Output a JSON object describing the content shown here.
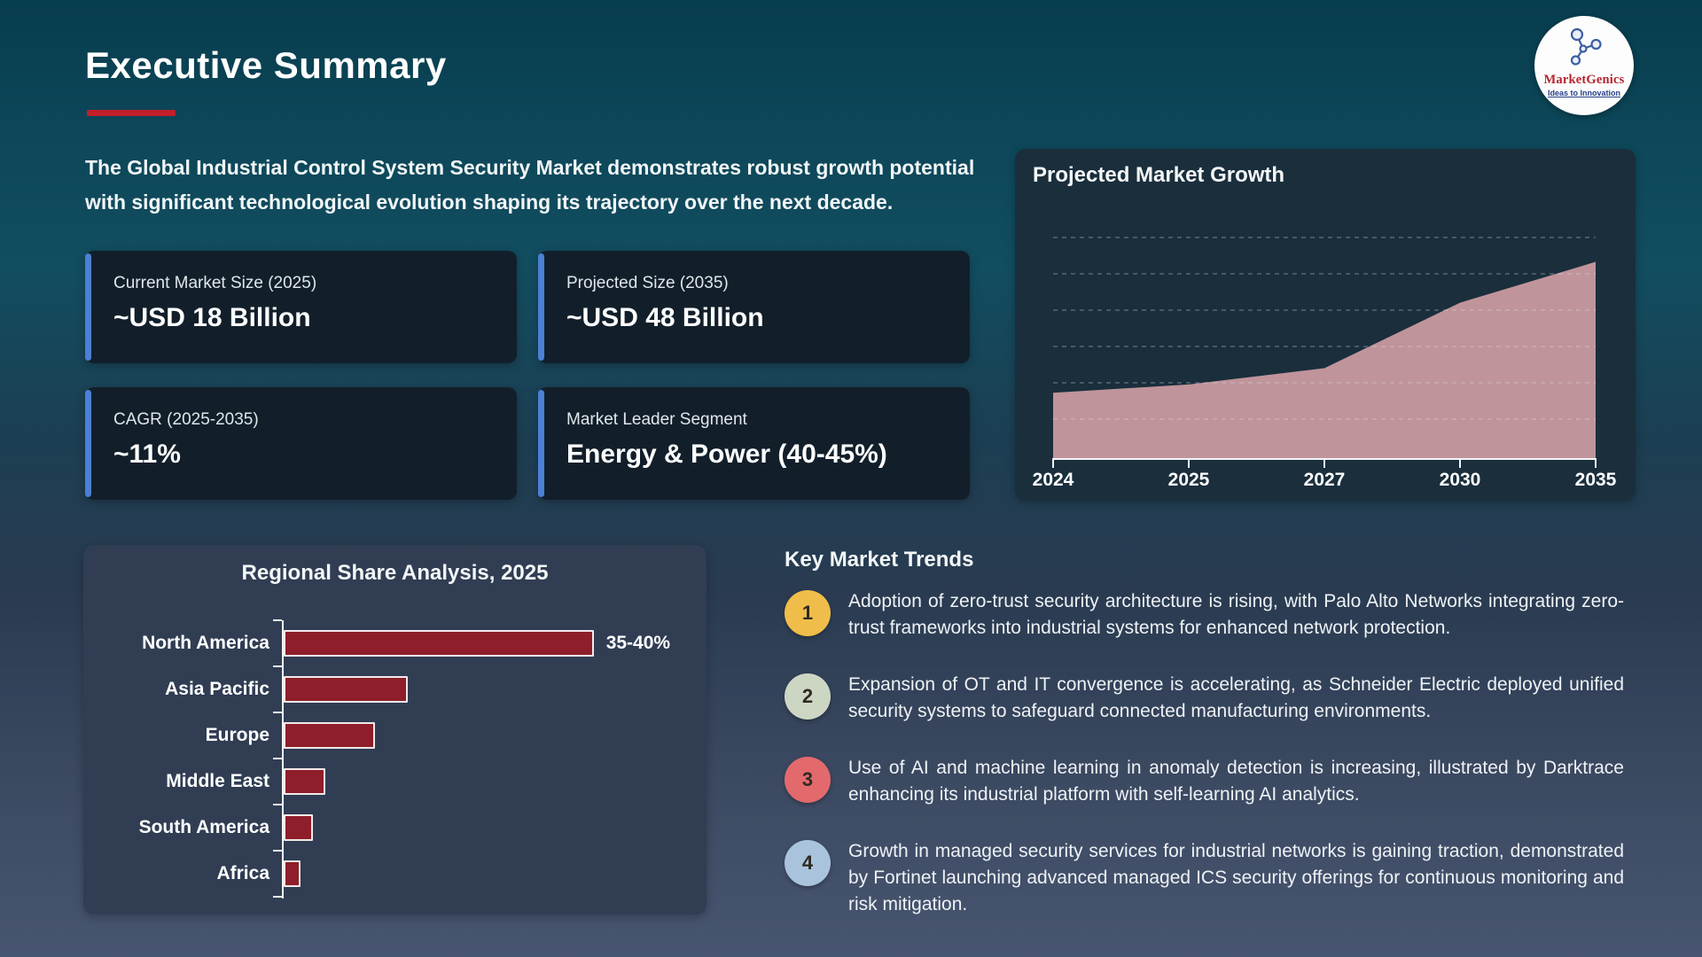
{
  "page": {
    "title": "Executive Summary"
  },
  "logo": {
    "brand": "MarketGenics",
    "tagline": "Ideas to Innovation"
  },
  "intro": {
    "text": "The Global Industrial Control System Security Market demonstrates robust growth potential with significant technological evolution shaping its trajectory over the next decade."
  },
  "stats": [
    {
      "label": "Current Market Size (2025)",
      "value": "~USD 18 Billion"
    },
    {
      "label": "Projected Size (2035)",
      "value": "~USD 48 Billion"
    },
    {
      "label": "CAGR (2025-2035)",
      "value": "~11%"
    },
    {
      "label": "Market Leader Segment",
      "value": "Energy & Power (40-45%)"
    }
  ],
  "chart_data": [
    {
      "type": "area",
      "title": "Projected Market Growth",
      "x": [
        "2024",
        "2025",
        "2027",
        "2030",
        "2035"
      ],
      "values": [
        16,
        18,
        22,
        38,
        48
      ],
      "ylim": [
        0,
        78
      ],
      "grid": "dashed-horizontal",
      "legend": "none",
      "fill_color": "#c0949b",
      "axis_color": "#f5f5f5"
    },
    {
      "type": "bar",
      "title": "Regional Share Analysis, 2025",
      "orientation": "horizontal",
      "categories": [
        "North America",
        "Asia Pacific",
        "Europe",
        "Middle East",
        "South America",
        "Africa"
      ],
      "values": [
        37.5,
        15,
        11,
        5,
        3.5,
        2
      ],
      "bar_labels": [
        "35-40%",
        "",
        "",
        "",
        "",
        ""
      ],
      "xlim": [
        0,
        40
      ],
      "grid": "off",
      "legend": "none",
      "bar_color": "#8e1e2a",
      "bar_border_color": "#f2e9ea"
    }
  ],
  "trends": {
    "heading": "Key Market Trends",
    "items": [
      {
        "num": "1",
        "badge_color": "#f0bd4a",
        "text": "Adoption of zero-trust security architecture is rising, with Palo Alto Networks integrating zero-trust frameworks into industrial systems for enhanced network protection."
      },
      {
        "num": "2",
        "badge_color": "#cdd6c3",
        "text": "Expansion of OT and IT convergence is accelerating, as Schneider Electric deployed unified security systems to safeguard connected manufacturing environments."
      },
      {
        "num": "3",
        "badge_color": "#e26a6d",
        "text": "Use of AI and machine learning in anomaly detection is increasing, illustrated by Darktrace enhancing its industrial platform with self-learning AI analytics."
      },
      {
        "num": "4",
        "badge_color": "#a9c3dc",
        "text": "Growth in managed security services for industrial networks is gaining traction, demonstrated by Fortinet launching advanced managed ICS security offerings for continuous monitoring and risk mitigation."
      }
    ]
  },
  "colors": {
    "accent_red": "#c11f2b",
    "accent_blue": "#4b80d5",
    "card_bg": "#121f2a",
    "growth_panel_bg": "#1a2e3c",
    "regional_panel_bg": "#303d53",
    "background_top": "#073d4e",
    "background_bottom": "#485570"
  }
}
